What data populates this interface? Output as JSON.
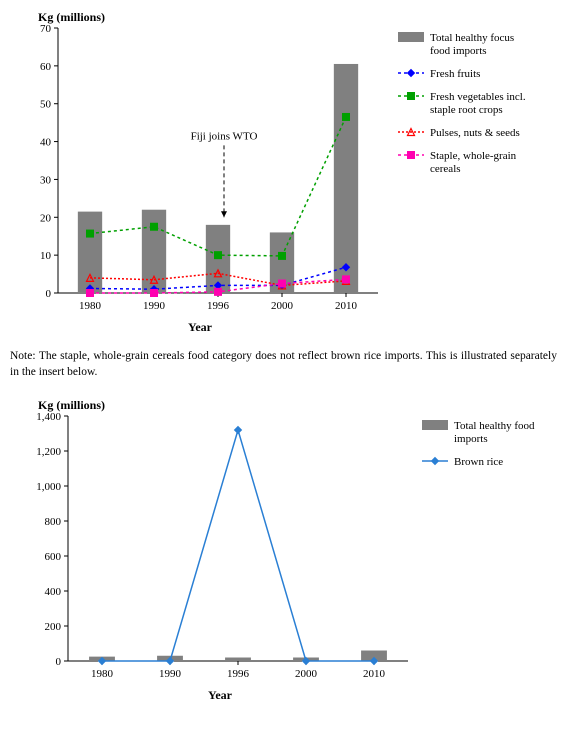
{
  "chart1": {
    "type": "bar+line",
    "y_title": "Kg (millions)",
    "x_title": "Year",
    "categories": [
      "1980",
      "1990",
      "1996",
      "2000",
      "2010"
    ],
    "ylim": [
      0,
      70
    ],
    "ytick_step": 10,
    "bar_color": "#808080",
    "axis_color": "#000000",
    "bar_width": 0.38,
    "series": {
      "bars": {
        "label": "Total healthy focus food imports",
        "values": [
          21.5,
          22,
          18,
          16,
          60.5
        ]
      },
      "fresh_fruits": {
        "label": "Fresh fruits",
        "color": "#0000ff",
        "marker": "diamond",
        "dash": "3,3",
        "values": [
          1.2,
          1.0,
          2.0,
          2.0,
          6.8
        ]
      },
      "fresh_veg": {
        "label": "Fresh vegetables incl. staple root crops",
        "color": "#00a000",
        "marker": "square",
        "dash": "3,3",
        "values": [
          15.7,
          17.5,
          10,
          9.8,
          46.5
        ]
      },
      "pulses": {
        "label": "Pulses, nuts & seeds",
        "color": "#ff0000",
        "marker": "triangle",
        "dash": "2,2",
        "values": [
          4.0,
          3.5,
          5.2,
          2.0,
          3.2
        ]
      },
      "staple": {
        "label": "Staple, whole-grain cereals",
        "color": "#ff00b0",
        "marker": "square",
        "dash": "3,3",
        "values": [
          0.0,
          0.0,
          0.3,
          2.5,
          3.6
        ]
      }
    },
    "annotation": {
      "text": "Fiji joins WTO",
      "x_index": 2,
      "y_from": 39,
      "y_to": 20
    }
  },
  "note_text": "Note: The staple, whole-grain cereals food category does not reflect brown rice imports. This is illustrated separately in the insert below.",
  "chart2": {
    "type": "bar+line",
    "y_title": "Kg (millions)",
    "x_title": "Year",
    "categories": [
      "1980",
      "1990",
      "1996",
      "2000",
      "2010"
    ],
    "ylim": [
      0,
      1400
    ],
    "ytick_step": 200,
    "bar_color": "#808080",
    "axis_color": "#000000",
    "bar_width": 0.38,
    "series": {
      "bars": {
        "label": "Total healthy food imports",
        "values": [
          25,
          30,
          20,
          20,
          60
        ]
      },
      "brown_rice": {
        "label": "Brown rice",
        "color": "#2a7fd4",
        "marker": "diamond",
        "dash": "none",
        "values": [
          0,
          0,
          1320,
          0,
          0
        ]
      }
    }
  }
}
